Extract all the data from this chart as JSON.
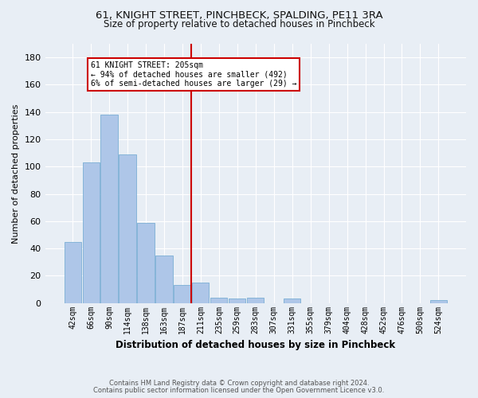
{
  "title1": "61, KNIGHT STREET, PINCHBECK, SPALDING, PE11 3RA",
  "title2": "Size of property relative to detached houses in Pinchbeck",
  "xlabel": "Distribution of detached houses by size in Pinchbeck",
  "ylabel": "Number of detached properties",
  "bar_labels": [
    "42sqm",
    "66sqm",
    "90sqm",
    "114sqm",
    "138sqm",
    "163sqm",
    "187sqm",
    "211sqm",
    "235sqm",
    "259sqm",
    "283sqm",
    "307sqm",
    "331sqm",
    "355sqm",
    "379sqm",
    "404sqm",
    "428sqm",
    "452sqm",
    "476sqm",
    "500sqm",
    "524sqm"
  ],
  "bar_values": [
    45,
    103,
    138,
    109,
    59,
    35,
    13,
    15,
    4,
    3,
    4,
    0,
    3,
    0,
    0,
    0,
    0,
    0,
    0,
    0,
    2
  ],
  "bar_color": "#aec6e8",
  "bar_edge_color": "#7aafd4",
  "bg_color": "#e8eef5",
  "grid_color": "#ffffff",
  "vline_color": "#cc0000",
  "annotation_text": "61 KNIGHT STREET: 205sqm\n← 94% of detached houses are smaller (492)\n6% of semi-detached houses are larger (29) →",
  "annotation_box_color": "#ffffff",
  "annotation_box_edge": "#cc0000",
  "footer1": "Contains HM Land Registry data © Crown copyright and database right 2024.",
  "footer2": "Contains public sector information licensed under the Open Government Licence v3.0.",
  "ylim": [
    0,
    190
  ],
  "yticks": [
    0,
    20,
    40,
    60,
    80,
    100,
    120,
    140,
    160,
    180
  ]
}
